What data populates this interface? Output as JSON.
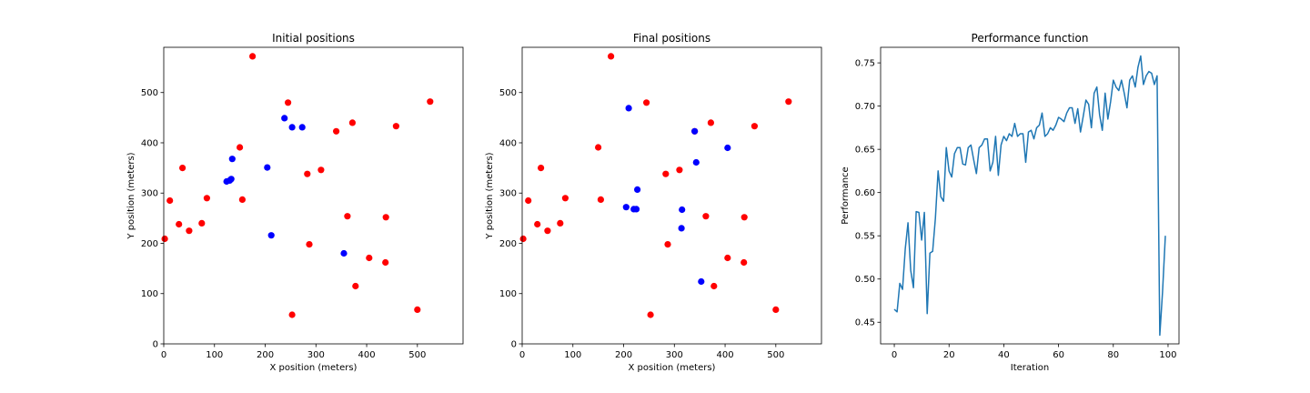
{
  "chart_data": [
    {
      "type": "scatter",
      "title": "Initial positions",
      "xlabel": "X position (meters)",
      "ylabel": "Y position (meters)",
      "xlim": [
        0,
        590
      ],
      "ylim": [
        0,
        590
      ],
      "xticks": [
        0,
        100,
        200,
        300,
        400,
        500
      ],
      "yticks": [
        0,
        100,
        200,
        300,
        400,
        500
      ],
      "grid": false,
      "series": [
        {
          "color": "#ff0000",
          "points": [
            [
              175,
              572
            ],
            [
              245,
              480
            ],
            [
              525,
              482
            ],
            [
              372,
              440
            ],
            [
              340,
              423
            ],
            [
              458,
              433
            ],
            [
              150,
              391
            ],
            [
              37,
              350
            ],
            [
              310,
              346
            ],
            [
              283,
              338
            ],
            [
              12,
              285
            ],
            [
              85,
              290
            ],
            [
              155,
              287
            ],
            [
              30,
              238
            ],
            [
              75,
              240
            ],
            [
              50,
              225
            ],
            [
              2,
              209
            ],
            [
              362,
              254
            ],
            [
              438,
              252
            ],
            [
              287,
              198
            ],
            [
              405,
              171
            ],
            [
              437,
              162
            ],
            [
              378,
              115
            ],
            [
              500,
              68
            ],
            [
              253,
              58
            ]
          ]
        },
        {
          "color": "#0000ff",
          "points": [
            [
              238,
              449
            ],
            [
              253,
              431
            ],
            [
              273,
              431
            ],
            [
              135,
              368
            ],
            [
              204,
              351
            ],
            [
              124,
              323
            ],
            [
              130,
              325
            ],
            [
              133,
              328
            ],
            [
              212,
              216
            ],
            [
              355,
              180
            ]
          ]
        }
      ]
    },
    {
      "type": "scatter",
      "title": "Final positions",
      "xlabel": "X position (meters)",
      "ylabel": "Y position (meters)",
      "xlim": [
        0,
        590
      ],
      "ylim": [
        0,
        590
      ],
      "xticks": [
        0,
        100,
        200,
        300,
        400,
        500
      ],
      "yticks": [
        0,
        100,
        200,
        300,
        400,
        500
      ],
      "grid": false,
      "series": [
        {
          "color": "#ff0000",
          "points": [
            [
              175,
              572
            ],
            [
              245,
              480
            ],
            [
              525,
              482
            ],
            [
              372,
              440
            ],
            [
              340,
              423
            ],
            [
              458,
              433
            ],
            [
              150,
              391
            ],
            [
              37,
              350
            ],
            [
              310,
              346
            ],
            [
              283,
              338
            ],
            [
              12,
              285
            ],
            [
              85,
              290
            ],
            [
              155,
              287
            ],
            [
              30,
              238
            ],
            [
              75,
              240
            ],
            [
              50,
              225
            ],
            [
              2,
              209
            ],
            [
              362,
              254
            ],
            [
              438,
              252
            ],
            [
              287,
              198
            ],
            [
              405,
              171
            ],
            [
              437,
              162
            ],
            [
              378,
              115
            ],
            [
              500,
              68
            ],
            [
              253,
              58
            ]
          ]
        },
        {
          "color": "#0000ff",
          "points": [
            [
              210,
              469
            ],
            [
              340,
              423
            ],
            [
              343,
              361
            ],
            [
              405,
              390
            ],
            [
              227,
              307
            ],
            [
              205,
              272
            ],
            [
              220,
              268
            ],
            [
              225,
              268
            ],
            [
              315,
              267
            ],
            [
              314,
              230
            ],
            [
              353,
              124
            ]
          ]
        }
      ]
    },
    {
      "type": "line",
      "title": "Performance function",
      "xlabel": "Iteration",
      "ylabel": "Performance",
      "xlim": [
        -5,
        104
      ],
      "ylim": [
        0.425,
        0.768
      ],
      "xticks": [
        0,
        20,
        40,
        60,
        80,
        100
      ],
      "yticks": [
        0.45,
        0.5,
        0.55,
        0.6,
        0.65,
        0.7,
        0.75
      ],
      "grid": false,
      "series": [
        {
          "color": "#1f77b4",
          "x_start": 0,
          "values": [
            0.465,
            0.462,
            0.495,
            0.488,
            0.535,
            0.565,
            0.51,
            0.49,
            0.578,
            0.577,
            0.545,
            0.577,
            0.46,
            0.53,
            0.532,
            0.57,
            0.625,
            0.595,
            0.59,
            0.652,
            0.625,
            0.618,
            0.645,
            0.652,
            0.652,
            0.633,
            0.632,
            0.652,
            0.655,
            0.638,
            0.622,
            0.652,
            0.655,
            0.662,
            0.662,
            0.625,
            0.635,
            0.665,
            0.62,
            0.655,
            0.665,
            0.66,
            0.668,
            0.665,
            0.68,
            0.665,
            0.668,
            0.668,
            0.635,
            0.67,
            0.672,
            0.662,
            0.675,
            0.678,
            0.692,
            0.665,
            0.668,
            0.675,
            0.672,
            0.678,
            0.687,
            0.685,
            0.682,
            0.692,
            0.698,
            0.698,
            0.68,
            0.697,
            0.67,
            0.688,
            0.707,
            0.702,
            0.675,
            0.715,
            0.722,
            0.69,
            0.672,
            0.715,
            0.685,
            0.705,
            0.73,
            0.722,
            0.718,
            0.73,
            0.715,
            0.698,
            0.73,
            0.735,
            0.722,
            0.745,
            0.758,
            0.725,
            0.735,
            0.74,
            0.738,
            0.725,
            0.735,
            0.435,
            0.485,
            0.55
          ]
        }
      ]
    }
  ]
}
